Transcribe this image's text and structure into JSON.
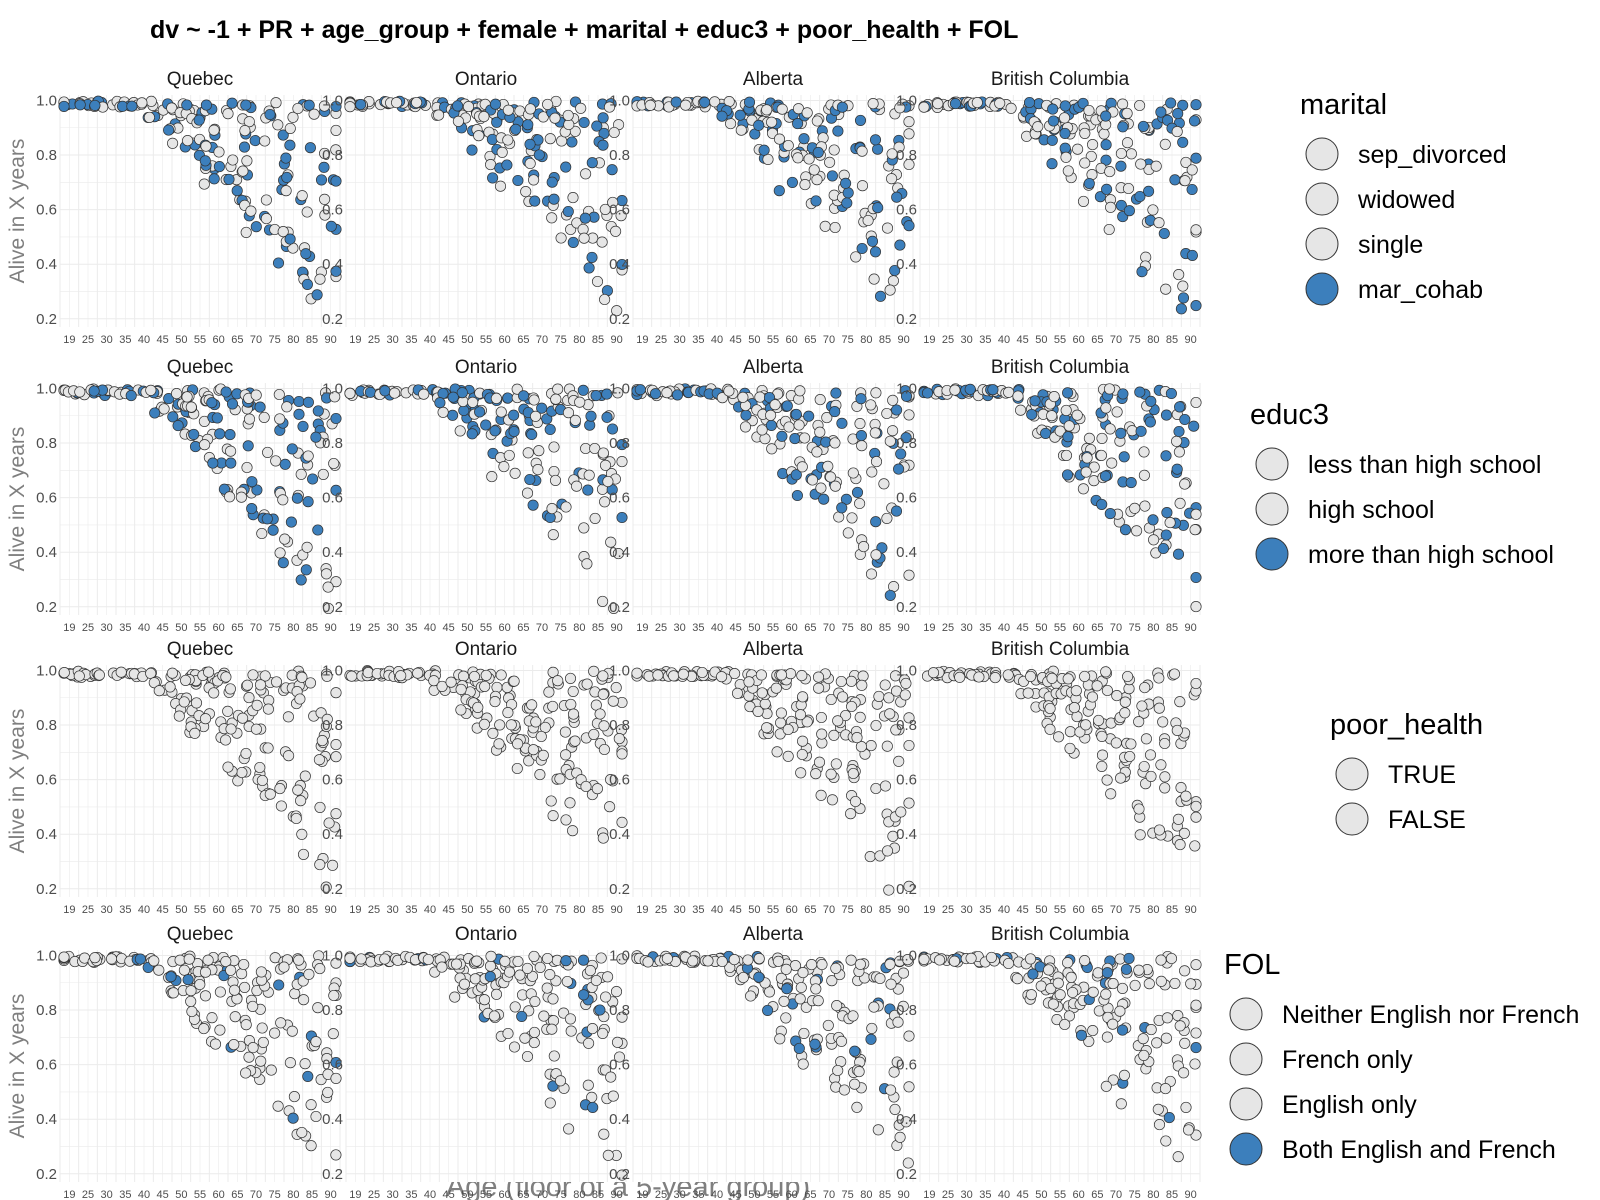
{
  "title": "dv ~ -1 + PR + age_group + female + marital + educ3 + poor_health + FOL",
  "colors": {
    "highlight": "#3c7fbc",
    "base": "#e6e6e6",
    "stroke": "#333333",
    "grid": "#ebebeb"
  },
  "chart_data": {
    "type": "scatter",
    "panels": [
      "Quebec",
      "Ontario",
      "Alberta",
      "British Columbia"
    ],
    "x_ticks": [
      "19",
      "25",
      "30",
      "35",
      "40",
      "45",
      "50",
      "55",
      "60",
      "65",
      "70",
      "75",
      "80",
      "85",
      "90"
    ],
    "y_ticks": [
      "0.2",
      "0.4",
      "0.6",
      "0.8",
      "1.0"
    ],
    "xlabel": "Age (floor of a 5-year group)",
    "ylabel": "Alive in X years",
    "ylim": [
      0.17,
      1.02
    ],
    "grid": true,
    "facet_rows": [
      {
        "variable": "marital",
        "highlight_share": 0.4,
        "ylim": [
          0.17,
          1.02
        ],
        "legend": [
          {
            "label": "sep_divorced",
            "color": "#e6e6e6"
          },
          {
            "label": "widowed",
            "color": "#e6e6e6"
          },
          {
            "label": "single",
            "color": "#e6e6e6"
          },
          {
            "label": "mar_cohab",
            "color": "#3c7fbc"
          }
        ]
      },
      {
        "variable": "educ3",
        "highlight_share": 0.4,
        "ylim": [
          0.17,
          1.02
        ],
        "legend": [
          {
            "label": "less than high school",
            "color": "#e6e6e6"
          },
          {
            "label": "high school",
            "color": "#e6e6e6"
          },
          {
            "label": "more than high school",
            "color": "#3c7fbc"
          }
        ]
      },
      {
        "variable": "poor_health",
        "highlight_share": 0.0,
        "ylim": [
          0.17,
          1.02
        ],
        "legend": [
          {
            "label": "TRUE",
            "color": "#e6e6e6"
          },
          {
            "label": "FALSE",
            "color": "#e6e6e6"
          }
        ]
      },
      {
        "variable": "FOL",
        "highlight_share": 0.1,
        "ylim": [
          0.17,
          1.02
        ],
        "legend": [
          {
            "label": "Neither English nor French",
            "color": "#e6e6e6"
          },
          {
            "label": "French only",
            "color": "#e6e6e6"
          },
          {
            "label": "English only",
            "color": "#e6e6e6"
          },
          {
            "label": "Both English and French",
            "color": "#3c7fbc"
          }
        ]
      }
    ]
  }
}
